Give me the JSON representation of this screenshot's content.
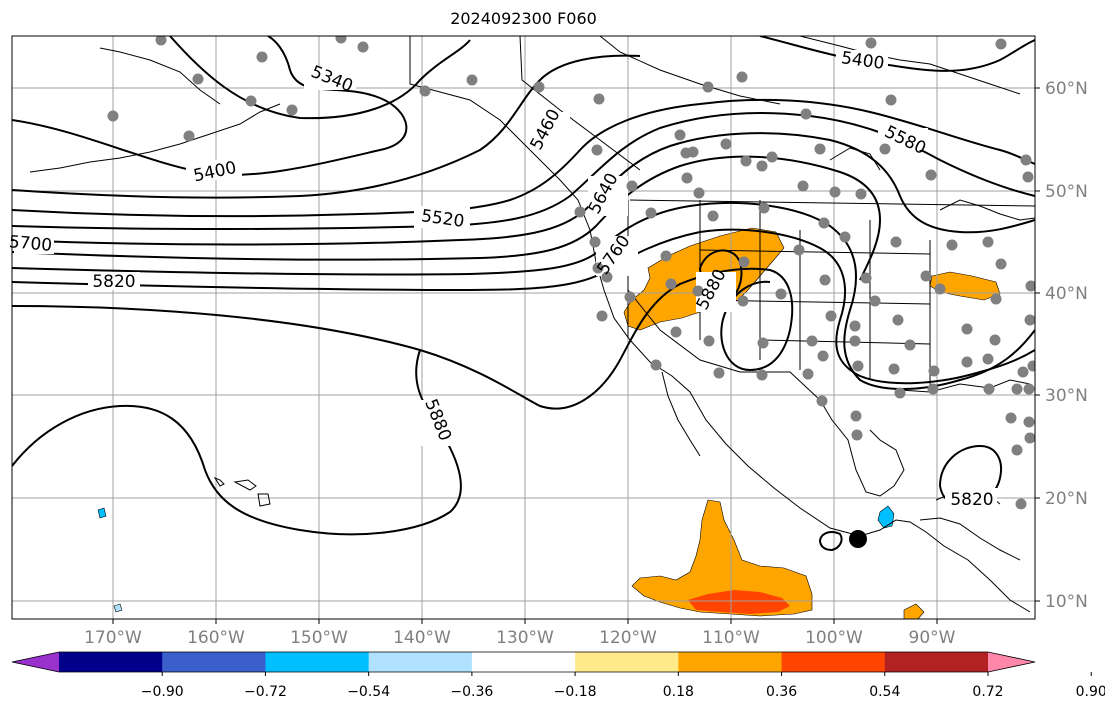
{
  "title": "2024092300 F060",
  "lon_labels": [
    "170°W",
    "160°W",
    "150°W",
    "140°W",
    "130°W",
    "120°W",
    "110°W",
    "100°W",
    "90°W"
  ],
  "lat_labels": [
    "60°N",
    "50°N",
    "40°N",
    "30°N",
    "20°N",
    "10°N"
  ],
  "contour_labels": {
    "c5400_east": "5400",
    "c5580": "5580",
    "c5400_west": "5400",
    "c5520": "5520",
    "c5460": "5460",
    "c5640": "5640",
    "c5700": "5700",
    "c5760": "5760",
    "c5820_west": "5820",
    "c5880_pacific": "5880",
    "c5880_sw": "5880",
    "c5820_gulf": "5820",
    "c5340": "5340"
  },
  "colorbar": {
    "colors": [
      "#9932cc",
      "#00008b",
      "#3a5fcd",
      "#00bfff",
      "#b0e2ff",
      "#ffffff",
      "#ffea8a",
      "#ffa500",
      "#ff4500",
      "#b22222",
      "#ff88aa"
    ],
    "ticks": [
      "−0.90",
      "−0.72",
      "−0.54",
      "−0.36",
      "−0.18",
      "0.18",
      "0.36",
      "0.54",
      "0.72",
      "0.90"
    ]
  }
}
